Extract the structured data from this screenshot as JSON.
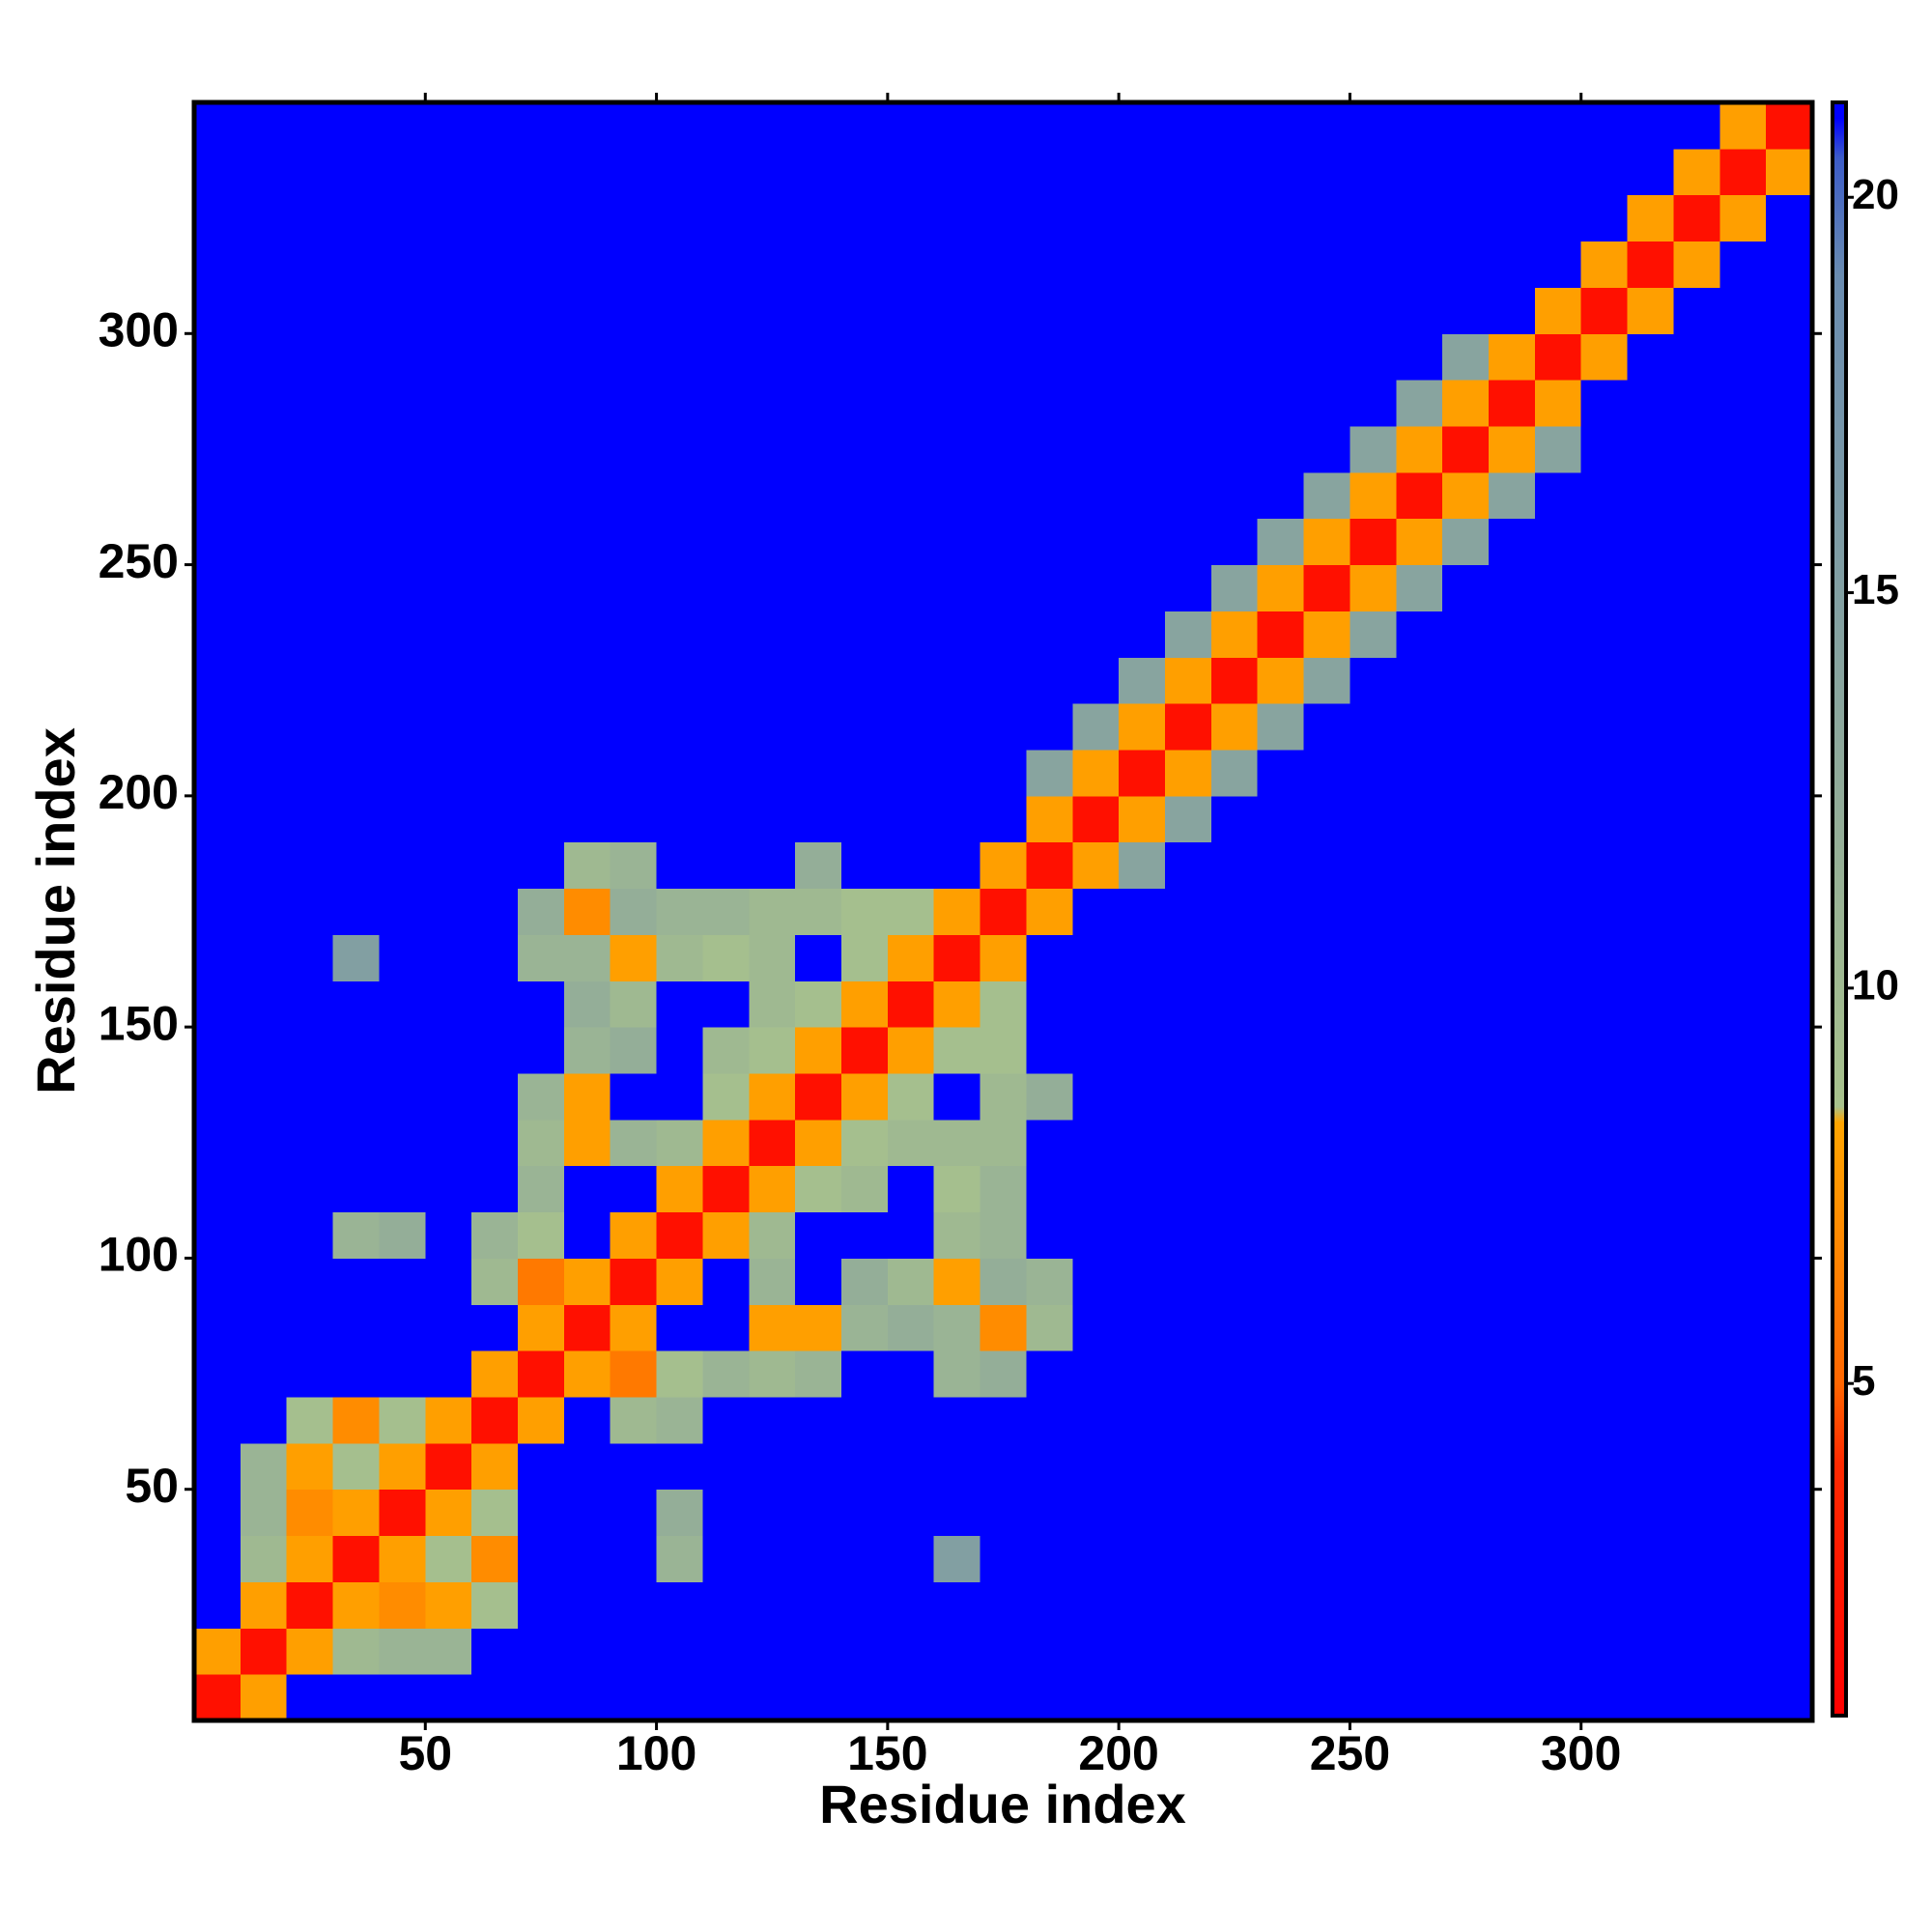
{
  "chart_data": {
    "type": "heatmap",
    "xlabel": "Residue index",
    "ylabel": "Residue index",
    "xlim": [
      0,
      350
    ],
    "ylim": [
      0,
      350
    ],
    "xticks": [
      50,
      100,
      150,
      200,
      250,
      300
    ],
    "yticks": [
      50,
      100,
      150,
      200,
      250,
      300
    ],
    "xbins": [
      0,
      10,
      20,
      30,
      40,
      50,
      60,
      70,
      80,
      90,
      100,
      110,
      120,
      130,
      140,
      150,
      160,
      170,
      180,
      190,
      200,
      210,
      220,
      230,
      240,
      250,
      260,
      270,
      280,
      290,
      300,
      310,
      320,
      330,
      340,
      350
    ],
    "ybins": [
      0,
      10,
      20,
      30,
      40,
      50,
      60,
      70,
      80,
      90,
      100,
      110,
      120,
      130,
      140,
      150,
      160,
      170,
      180,
      190,
      200,
      210,
      220,
      230,
      240,
      250,
      260,
      270,
      280,
      290,
      300,
      310,
      320,
      330,
      340,
      350
    ],
    "values": [
      [
        2,
        8,
        21,
        21,
        21,
        21,
        21,
        21,
        21,
        21,
        21,
        21,
        21,
        21,
        21,
        21,
        21,
        21,
        21,
        21,
        21,
        21,
        21,
        21,
        21,
        21,
        21,
        21,
        21,
        21,
        21,
        21,
        21,
        21,
        21
      ],
      [
        8,
        2,
        8,
        10,
        11,
        11,
        21,
        21,
        21,
        21,
        21,
        21,
        21,
        21,
        21,
        21,
        21,
        21,
        21,
        21,
        21,
        21,
        21,
        21,
        21,
        21,
        21,
        21,
        21,
        21,
        21,
        21,
        21,
        21,
        21
      ],
      [
        21,
        8,
        2,
        8,
        7,
        8,
        9,
        21,
        21,
        21,
        21,
        21,
        21,
        21,
        21,
        21,
        21,
        21,
        21,
        21,
        21,
        21,
        21,
        21,
        21,
        21,
        21,
        21,
        21,
        21,
        21,
        21,
        21,
        21,
        21
      ],
      [
        21,
        10,
        8,
        2,
        8,
        9,
        7,
        21,
        21,
        21,
        11,
        21,
        21,
        21,
        21,
        21,
        15,
        21,
        21,
        21,
        21,
        21,
        21,
        21,
        21,
        21,
        21,
        21,
        21,
        21,
        21,
        21,
        21,
        21,
        21
      ],
      [
        21,
        11,
        7,
        8,
        2,
        8,
        9,
        21,
        21,
        21,
        12,
        21,
        21,
        21,
        21,
        21,
        21,
        21,
        21,
        21,
        21,
        21,
        21,
        21,
        21,
        21,
        21,
        21,
        21,
        21,
        21,
        21,
        21,
        21,
        21
      ],
      [
        21,
        11,
        8,
        9,
        8,
        2,
        8,
        21,
        21,
        21,
        21,
        21,
        21,
        21,
        21,
        21,
        21,
        21,
        21,
        21,
        21,
        21,
        21,
        21,
        21,
        21,
        21,
        21,
        21,
        21,
        21,
        21,
        21,
        21,
        21
      ],
      [
        21,
        21,
        9,
        7,
        9,
        8,
        2,
        8,
        21,
        10,
        11,
        21,
        21,
        21,
        21,
        21,
        21,
        21,
        21,
        21,
        21,
        21,
        21,
        21,
        21,
        21,
        21,
        21,
        21,
        21,
        21,
        21,
        21,
        21,
        21
      ],
      [
        21,
        21,
        21,
        21,
        21,
        21,
        8,
        2,
        8,
        6,
        9,
        11,
        10,
        11,
        21,
        21,
        11,
        12,
        21,
        21,
        21,
        21,
        21,
        21,
        21,
        21,
        21,
        21,
        21,
        21,
        21,
        21,
        21,
        21,
        21
      ],
      [
        21,
        21,
        21,
        21,
        21,
        21,
        21,
        8,
        2,
        8,
        21,
        21,
        8,
        8,
        11,
        12,
        11,
        7,
        10,
        21,
        21,
        21,
        21,
        21,
        21,
        21,
        21,
        21,
        21,
        21,
        21,
        21,
        21,
        21,
        21
      ],
      [
        21,
        21,
        21,
        21,
        21,
        21,
        10,
        6,
        8,
        2,
        8,
        21,
        11,
        21,
        12,
        10,
        8,
        12,
        11,
        21,
        21,
        21,
        21,
        21,
        21,
        21,
        21,
        21,
        21,
        21,
        21,
        21,
        21,
        21,
        21
      ],
      [
        21,
        21,
        21,
        11,
        12,
        21,
        11,
        9,
        21,
        8,
        2,
        8,
        10,
        21,
        21,
        21,
        10,
        11,
        21,
        21,
        21,
        21,
        21,
        21,
        21,
        21,
        21,
        21,
        21,
        21,
        21,
        21,
        21,
        21,
        21
      ],
      [
        21,
        21,
        21,
        21,
        21,
        21,
        21,
        11,
        21,
        21,
        8,
        2,
        8,
        9,
        10,
        21,
        9,
        11,
        21,
        21,
        21,
        21,
        21,
        21,
        21,
        21,
        21,
        21,
        21,
        21,
        21,
        21,
        21,
        21,
        21
      ],
      [
        21,
        21,
        21,
        21,
        21,
        21,
        21,
        10,
        8,
        11,
        10,
        8,
        2,
        8,
        9,
        10,
        10,
        10,
        21,
        21,
        21,
        21,
        21,
        21,
        21,
        21,
        21,
        21,
        21,
        21,
        21,
        21,
        21,
        21,
        21
      ],
      [
        21,
        21,
        21,
        21,
        21,
        21,
        21,
        11,
        8,
        21,
        21,
        9,
        8,
        2,
        8,
        9,
        21,
        10,
        12,
        21,
        21,
        21,
        21,
        21,
        21,
        21,
        21,
        21,
        21,
        21,
        21,
        21,
        21,
        21,
        21
      ],
      [
        21,
        21,
        21,
        21,
        21,
        21,
        21,
        21,
        11,
        12,
        21,
        10,
        9,
        8,
        2,
        8,
        9,
        9,
        21,
        21,
        21,
        21,
        21,
        21,
        21,
        21,
        21,
        21,
        21,
        21,
        21,
        21,
        21,
        21,
        21
      ],
      [
        21,
        21,
        21,
        21,
        21,
        21,
        21,
        21,
        12,
        10,
        21,
        21,
        10,
        9,
        8,
        2,
        8,
        9,
        21,
        21,
        21,
        21,
        21,
        21,
        21,
        21,
        21,
        21,
        21,
        21,
        21,
        21,
        21,
        21,
        21
      ],
      [
        21,
        21,
        21,
        15,
        21,
        21,
        21,
        11,
        11,
        8,
        10,
        9,
        10,
        21,
        9,
        8,
        2,
        8,
        21,
        21,
        21,
        21,
        21,
        21,
        21,
        21,
        21,
        21,
        21,
        21,
        21,
        21,
        21,
        21,
        21
      ],
      [
        21,
        21,
        21,
        21,
        21,
        21,
        21,
        12,
        7,
        12,
        11,
        11,
        10,
        10,
        9,
        9,
        8,
        2,
        8,
        21,
        21,
        21,
        21,
        21,
        21,
        21,
        21,
        21,
        21,
        21,
        21,
        21,
        21,
        21,
        21
      ],
      [
        21,
        21,
        21,
        21,
        21,
        21,
        21,
        21,
        10,
        11,
        21,
        21,
        21,
        12,
        21,
        21,
        21,
        8,
        2,
        8,
        14,
        21,
        21,
        21,
        21,
        21,
        21,
        21,
        21,
        21,
        21,
        21,
        21,
        21,
        21
      ],
      [
        21,
        21,
        21,
        21,
        21,
        21,
        21,
        21,
        21,
        21,
        21,
        21,
        21,
        21,
        21,
        21,
        21,
        21,
        8,
        2,
        8,
        14,
        21,
        21,
        21,
        21,
        21,
        21,
        21,
        21,
        21,
        21,
        21,
        21,
        21
      ],
      [
        21,
        21,
        21,
        21,
        21,
        21,
        21,
        21,
        21,
        21,
        21,
        21,
        21,
        21,
        21,
        21,
        21,
        21,
        14,
        8,
        2,
        8,
        14,
        21,
        21,
        21,
        21,
        21,
        21,
        21,
        21,
        21,
        21,
        21,
        21
      ],
      [
        21,
        21,
        21,
        21,
        21,
        21,
        21,
        21,
        21,
        21,
        21,
        21,
        21,
        21,
        21,
        21,
        21,
        21,
        21,
        14,
        8,
        2,
        8,
        14,
        21,
        21,
        21,
        21,
        21,
        21,
        21,
        21,
        21,
        21,
        21
      ],
      [
        21,
        21,
        21,
        21,
        21,
        21,
        21,
        21,
        21,
        21,
        21,
        21,
        21,
        21,
        21,
        21,
        21,
        21,
        21,
        21,
        14,
        8,
        2,
        8,
        14,
        21,
        21,
        21,
        21,
        21,
        21,
        21,
        21,
        21,
        21
      ],
      [
        21,
        21,
        21,
        21,
        21,
        21,
        21,
        21,
        21,
        21,
        21,
        21,
        21,
        21,
        21,
        21,
        21,
        21,
        21,
        21,
        21,
        14,
        8,
        2,
        8,
        14,
        21,
        21,
        21,
        21,
        21,
        21,
        21,
        21,
        21
      ],
      [
        21,
        21,
        21,
        21,
        21,
        21,
        21,
        21,
        21,
        21,
        21,
        21,
        21,
        21,
        21,
        21,
        21,
        21,
        21,
        21,
        21,
        21,
        14,
        8,
        2,
        8,
        14,
        21,
        21,
        21,
        21,
        21,
        21,
        21,
        21
      ],
      [
        21,
        21,
        21,
        21,
        21,
        21,
        21,
        21,
        21,
        21,
        21,
        21,
        21,
        21,
        21,
        21,
        21,
        21,
        21,
        21,
        21,
        21,
        21,
        14,
        8,
        2,
        8,
        14,
        21,
        21,
        21,
        21,
        21,
        21,
        21
      ],
      [
        21,
        21,
        21,
        21,
        21,
        21,
        21,
        21,
        21,
        21,
        21,
        21,
        21,
        21,
        21,
        21,
        21,
        21,
        21,
        21,
        21,
        21,
        21,
        21,
        14,
        8,
        2,
        8,
        14,
        21,
        21,
        21,
        21,
        21,
        21
      ],
      [
        21,
        21,
        21,
        21,
        21,
        21,
        21,
        21,
        21,
        21,
        21,
        21,
        21,
        21,
        21,
        21,
        21,
        21,
        21,
        21,
        21,
        21,
        21,
        21,
        21,
        14,
        8,
        2,
        8,
        14,
        21,
        21,
        21,
        21,
        21
      ],
      [
        21,
        21,
        21,
        21,
        21,
        21,
        21,
        21,
        21,
        21,
        21,
        21,
        21,
        21,
        21,
        21,
        21,
        21,
        21,
        21,
        21,
        21,
        21,
        21,
        21,
        21,
        14,
        8,
        2,
        8,
        21,
        21,
        21,
        21,
        21
      ],
      [
        21,
        21,
        21,
        21,
        21,
        21,
        21,
        21,
        21,
        21,
        21,
        21,
        21,
        21,
        21,
        21,
        21,
        21,
        21,
        21,
        21,
        21,
        21,
        21,
        21,
        21,
        21,
        14,
        8,
        2,
        8,
        21,
        21,
        21,
        21
      ],
      [
        21,
        21,
        21,
        21,
        21,
        21,
        21,
        21,
        21,
        21,
        21,
        21,
        21,
        21,
        21,
        21,
        21,
        21,
        21,
        21,
        21,
        21,
        21,
        21,
        21,
        21,
        21,
        21,
        21,
        8,
        2,
        8,
        21,
        21,
        21
      ],
      [
        21,
        21,
        21,
        21,
        21,
        21,
        21,
        21,
        21,
        21,
        21,
        21,
        21,
        21,
        21,
        21,
        21,
        21,
        21,
        21,
        21,
        21,
        21,
        21,
        21,
        21,
        21,
        21,
        21,
        21,
        8,
        2,
        8,
        21,
        21
      ],
      [
        21,
        21,
        21,
        21,
        21,
        21,
        21,
        21,
        21,
        21,
        21,
        21,
        21,
        21,
        21,
        21,
        21,
        21,
        21,
        21,
        21,
        21,
        21,
        21,
        21,
        21,
        21,
        21,
        21,
        21,
        21,
        8,
        2,
        8,
        21
      ],
      [
        21,
        21,
        21,
        21,
        21,
        21,
        21,
        21,
        21,
        21,
        21,
        21,
        21,
        21,
        21,
        21,
        21,
        21,
        21,
        21,
        21,
        21,
        21,
        21,
        21,
        21,
        21,
        21,
        21,
        21,
        21,
        21,
        8,
        2,
        8
      ],
      [
        21,
        21,
        21,
        21,
        21,
        21,
        21,
        21,
        21,
        21,
        21,
        21,
        21,
        21,
        21,
        21,
        21,
        21,
        21,
        21,
        21,
        21,
        21,
        21,
        21,
        21,
        21,
        21,
        21,
        21,
        21,
        21,
        21,
        8,
        2
      ]
    ],
    "colorbar": {
      "lim": [
        0.8,
        21.2
      ],
      "ticks": [
        5,
        10,
        15,
        20
      ]
    },
    "colorscale": [
      [
        0.8,
        "#ff0000"
      ],
      [
        4,
        "#ff2a00"
      ],
      [
        5,
        "#ff6600"
      ],
      [
        8.3,
        "#ffa500"
      ],
      [
        8.5,
        "#a8c28c"
      ],
      [
        12,
        "#94ae98"
      ],
      [
        19,
        "#6a8cb0"
      ],
      [
        20.5,
        "#3c5cc8"
      ],
      [
        21,
        "#0000ff"
      ]
    ]
  }
}
